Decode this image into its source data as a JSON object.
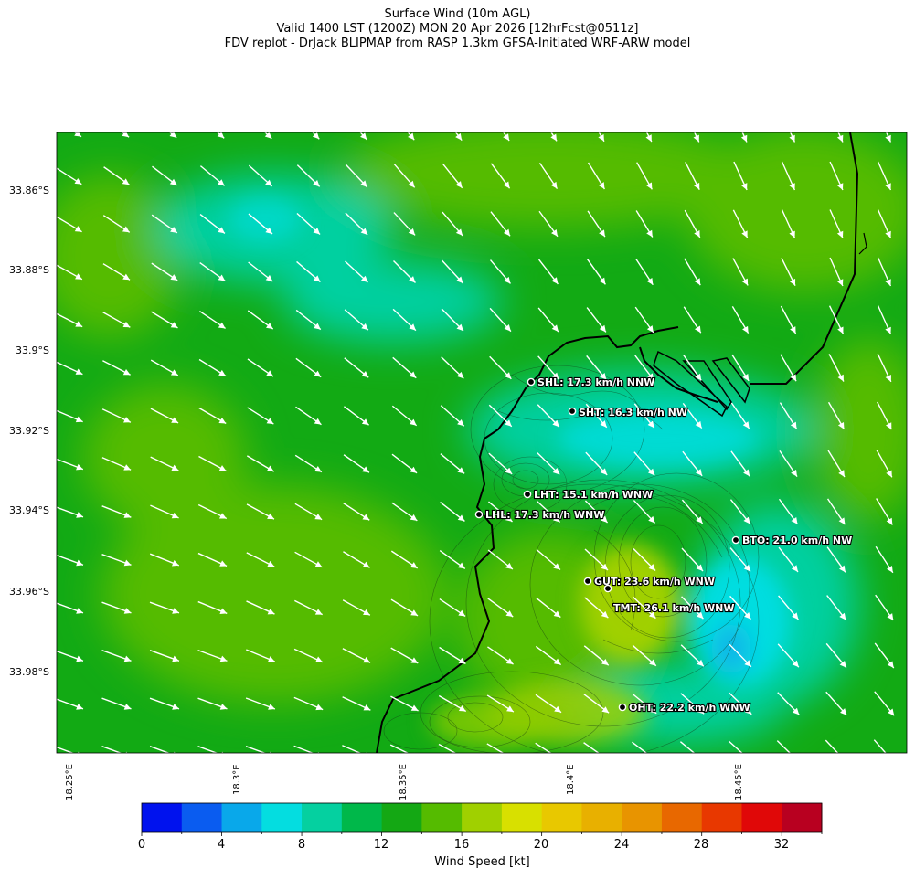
{
  "header": {
    "line1": "Surface Wind (10m AGL)",
    "line2": "Valid 1400 LST (1200Z) MON 20 Apr 2026 [12hrFcst@0511z]",
    "line3": "FDV replot - DrJack BLIPMAP from RASP 1.3km GFSA-Initiated WRF-ARW model"
  },
  "axes": {
    "lat_labels": [
      "33.86°S",
      "33.88°S",
      "33.9°S",
      "33.92°S",
      "33.94°S",
      "33.96°S",
      "33.98°S"
    ],
    "lon_labels": [
      "18.25°E",
      "18.3°E",
      "18.35°E",
      "18.4°E",
      "18.45°E"
    ]
  },
  "stations": [
    {
      "id": "SHL",
      "label": "SHL: 17.3 km/h NNW"
    },
    {
      "id": "SHT",
      "label": "SHT: 16.3 km/h NW"
    },
    {
      "id": "LHT",
      "label": "LHT: 15.1 km/h WNW"
    },
    {
      "id": "LHL",
      "label": "LHL: 17.3 km/h WNW"
    },
    {
      "id": "BTO",
      "label": "BTO: 21.0 km/h NW"
    },
    {
      "id": "GUT",
      "label": "GUT: 23.6 km/h WNW"
    },
    {
      "id": "TMT",
      "label": "TMT: 26.1 km/h WNW"
    },
    {
      "id": "OHT",
      "label": "OHT: 22.2 km/h WNW"
    }
  ],
  "colorbar": {
    "title": "Wind Speed [kt]",
    "ticks": [
      "0",
      "4",
      "8",
      "12",
      "16",
      "20",
      "24",
      "28",
      "32"
    ],
    "colors": [
      "#0012ee",
      "#0a5cf0",
      "#09a8ea",
      "#04dde0",
      "#05d0a0",
      "#00b84a",
      "#14a814",
      "#55bb00",
      "#a0d000",
      "#d8e000",
      "#e8c800",
      "#e8b000",
      "#e89400",
      "#e86800",
      "#e83800",
      "#e00808",
      "#b80020"
    ]
  },
  "wind_field": {
    "prevailing_direction": "WNW to NNW",
    "speed_range_kt": [
      6,
      22
    ]
  }
}
